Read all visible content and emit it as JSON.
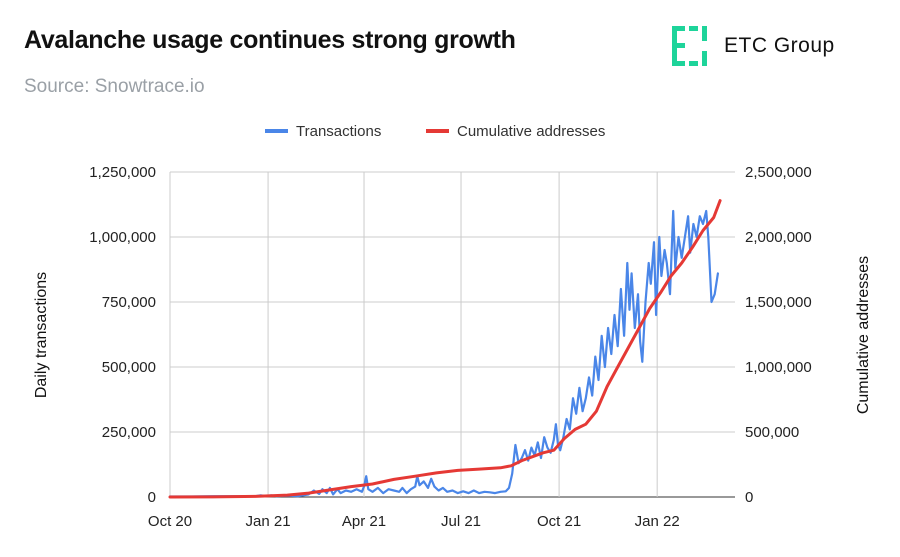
{
  "header": {
    "title": "Avalanche usage continues strong growth",
    "source": "Source: Snowtrace.io",
    "brand": "ETC Group"
  },
  "colors": {
    "transactions": "#4a86e8",
    "cumulative": "#e53935",
    "brand": "#1ed49a",
    "grid": "#cccccc"
  },
  "chart_data": {
    "type": "line",
    "title": "Avalanche usage continues strong growth",
    "legend_position": "top-center",
    "x_ticks": [
      {
        "label": "Oct 20",
        "day": 0
      },
      {
        "label": "Jan 21",
        "day": 92
      },
      {
        "label": "Apr 21",
        "day": 182
      },
      {
        "label": "Jul 21",
        "day": 273
      },
      {
        "label": "Oct 21",
        "day": 365
      },
      {
        "label": "Jan 22",
        "day": 457
      }
    ],
    "x_range": [
      0,
      530
    ],
    "y_left": {
      "label": "Daily transactions",
      "range": [
        0,
        1250000
      ],
      "ticks": [
        "0",
        "250,000",
        "500,000",
        "750,000",
        "1,000,000",
        "1,250,000"
      ]
    },
    "y_right": {
      "label": "Cumulative addresses",
      "range": [
        0,
        2500000
      ],
      "ticks": [
        "0",
        "500,000",
        "1,000,000",
        "1,500,000",
        "2,000,000",
        "2,500,000"
      ]
    },
    "series": [
      {
        "name": "Transactions",
        "axis": "left",
        "points": [
          [
            0,
            2000
          ],
          [
            20,
            2000
          ],
          [
            40,
            3000
          ],
          [
            60,
            3000
          ],
          [
            80,
            3000
          ],
          [
            85,
            6000
          ],
          [
            90,
            4000
          ],
          [
            95,
            6000
          ],
          [
            100,
            3000
          ],
          [
            110,
            5000
          ],
          [
            120,
            3000
          ],
          [
            130,
            10000
          ],
          [
            135,
            25000
          ],
          [
            140,
            12000
          ],
          [
            143,
            30000
          ],
          [
            147,
            15000
          ],
          [
            150,
            35000
          ],
          [
            153,
            10000
          ],
          [
            157,
            30000
          ],
          [
            160,
            15000
          ],
          [
            165,
            25000
          ],
          [
            170,
            20000
          ],
          [
            175,
            30000
          ],
          [
            180,
            20000
          ],
          [
            182,
            40000
          ],
          [
            184,
            80000
          ],
          [
            186,
            30000
          ],
          [
            190,
            20000
          ],
          [
            195,
            35000
          ],
          [
            200,
            15000
          ],
          [
            205,
            30000
          ],
          [
            210,
            25000
          ],
          [
            215,
            20000
          ],
          [
            218,
            35000
          ],
          [
            222,
            15000
          ],
          [
            226,
            30000
          ],
          [
            230,
            40000
          ],
          [
            232,
            80000
          ],
          [
            234,
            45000
          ],
          [
            238,
            60000
          ],
          [
            242,
            35000
          ],
          [
            245,
            70000
          ],
          [
            248,
            40000
          ],
          [
            252,
            25000
          ],
          [
            256,
            35000
          ],
          [
            260,
            20000
          ],
          [
            265,
            25000
          ],
          [
            270,
            15000
          ],
          [
            275,
            22000
          ],
          [
            280,
            15000
          ],
          [
            285,
            25000
          ],
          [
            290,
            15000
          ],
          [
            295,
            20000
          ],
          [
            300,
            18000
          ],
          [
            305,
            15000
          ],
          [
            310,
            20000
          ],
          [
            315,
            22000
          ],
          [
            318,
            35000
          ],
          [
            321,
            90000
          ],
          [
            324,
            200000
          ],
          [
            327,
            130000
          ],
          [
            330,
            150000
          ],
          [
            333,
            180000
          ],
          [
            336,
            140000
          ],
          [
            339,
            190000
          ],
          [
            342,
            160000
          ],
          [
            345,
            210000
          ],
          [
            348,
            150000
          ],
          [
            351,
            230000
          ],
          [
            354,
            190000
          ],
          [
            357,
            170000
          ],
          [
            360,
            220000
          ],
          [
            362,
            280000
          ],
          [
            364,
            200000
          ],
          [
            366,
            180000
          ],
          [
            369,
            230000
          ],
          [
            372,
            300000
          ],
          [
            375,
            260000
          ],
          [
            378,
            380000
          ],
          [
            381,
            320000
          ],
          [
            384,
            420000
          ],
          [
            387,
            330000
          ],
          [
            390,
            380000
          ],
          [
            393,
            460000
          ],
          [
            396,
            390000
          ],
          [
            399,
            540000
          ],
          [
            402,
            450000
          ],
          [
            405,
            620000
          ],
          [
            408,
            500000
          ],
          [
            411,
            650000
          ],
          [
            414,
            550000
          ],
          [
            417,
            700000
          ],
          [
            420,
            580000
          ],
          [
            423,
            800000
          ],
          [
            426,
            620000
          ],
          [
            429,
            900000
          ],
          [
            431,
            720000
          ],
          [
            433,
            860000
          ],
          [
            436,
            650000
          ],
          [
            439,
            780000
          ],
          [
            441,
            600000
          ],
          [
            443,
            520000
          ],
          [
            446,
            750000
          ],
          [
            449,
            900000
          ],
          [
            451,
            820000
          ],
          [
            454,
            980000
          ],
          [
            456,
            700000
          ],
          [
            459,
            1000000
          ],
          [
            461,
            850000
          ],
          [
            464,
            950000
          ],
          [
            466,
            900000
          ],
          [
            469,
            780000
          ],
          [
            472,
            1100000
          ],
          [
            474,
            880000
          ],
          [
            477,
            1000000
          ],
          [
            480,
            920000
          ],
          [
            483,
            1000000
          ],
          [
            486,
            1080000
          ],
          [
            488,
            940000
          ],
          [
            491,
            1050000
          ],
          [
            494,
            1000000
          ],
          [
            497,
            1080000
          ],
          [
            500,
            1050000
          ],
          [
            503,
            1100000
          ],
          [
            505,
            1000000
          ],
          [
            508,
            750000
          ],
          [
            511,
            780000
          ],
          [
            514,
            860000
          ]
        ]
      },
      {
        "name": "Cumulative addresses",
        "axis": "right",
        "points": [
          [
            0,
            0
          ],
          [
            40,
            1000
          ],
          [
            80,
            5000
          ],
          [
            110,
            15000
          ],
          [
            130,
            30000
          ],
          [
            150,
            55000
          ],
          [
            170,
            80000
          ],
          [
            190,
            100000
          ],
          [
            210,
            135000
          ],
          [
            230,
            160000
          ],
          [
            250,
            185000
          ],
          [
            270,
            205000
          ],
          [
            290,
            215000
          ],
          [
            310,
            225000
          ],
          [
            320,
            240000
          ],
          [
            330,
            280000
          ],
          [
            340,
            310000
          ],
          [
            350,
            340000
          ],
          [
            360,
            360000
          ],
          [
            370,
            450000
          ],
          [
            380,
            520000
          ],
          [
            390,
            560000
          ],
          [
            400,
            660000
          ],
          [
            410,
            850000
          ],
          [
            420,
            1000000
          ],
          [
            430,
            1150000
          ],
          [
            440,
            1300000
          ],
          [
            450,
            1450000
          ],
          [
            460,
            1570000
          ],
          [
            470,
            1700000
          ],
          [
            480,
            1800000
          ],
          [
            490,
            1920000
          ],
          [
            500,
            2050000
          ],
          [
            510,
            2150000
          ],
          [
            516,
            2280000
          ]
        ]
      }
    ]
  }
}
